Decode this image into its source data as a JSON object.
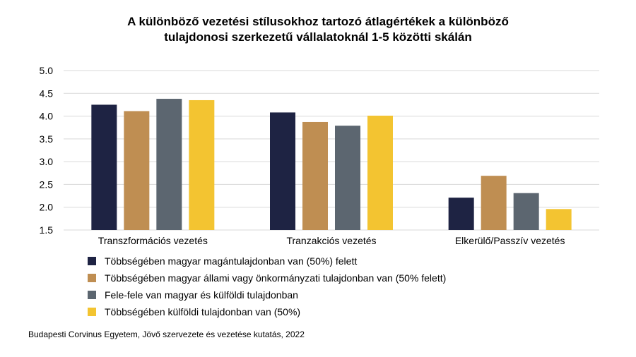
{
  "chart_data": {
    "type": "bar",
    "title_lines": [
      "A különböző vezetési stílusokhoz tartozó átlagértékek a különböző",
      "tulajdonosi szerkezetű vállalatoknál 1-5 közötti skálán"
    ],
    "categories": [
      "Transzformációs vezetés",
      "Tranzakciós vezetés",
      "Elkerülő/Passzív vezetés"
    ],
    "series": [
      {
        "name": "Többségében magyar magántulajdonban van (50%) felett",
        "color": "#1e2343",
        "values": [
          4.25,
          4.08,
          2.21
        ]
      },
      {
        "name": "Többségében magyar állami vagy önkormányzati tulajdonban van (50% felett)",
        "color": "#bf8e52",
        "values": [
          4.11,
          3.87,
          2.69
        ]
      },
      {
        "name": "Fele-fele van magyar és külföldi tulajdonban",
        "color": "#5c6670",
        "values": [
          4.38,
          3.79,
          2.31
        ]
      },
      {
        "name": "Többségében külföldi tulajdonban van (50%)",
        "color": "#f3c431",
        "values": [
          4.35,
          4.01,
          1.96
        ]
      }
    ],
    "ylim": [
      1.5,
      5.0
    ],
    "yticks": [
      "5.0",
      "4.5",
      "4.0",
      "3.5",
      "3.0",
      "2.5",
      "2.0",
      "1.5"
    ],
    "grid": true,
    "legend_position": "bottom-left",
    "source": "Budapesti Corvinus Egyetem, Jövő szervezete és vezetése kutatás, 2022"
  }
}
